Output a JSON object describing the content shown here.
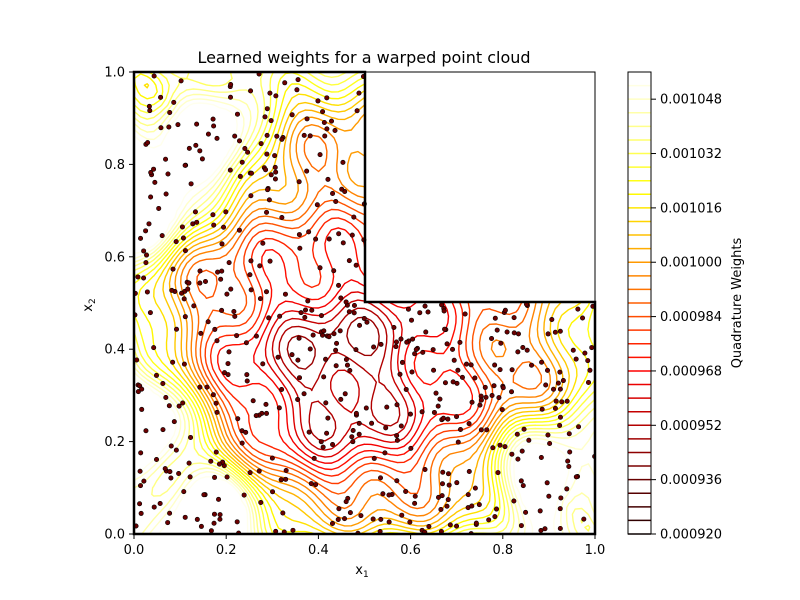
{
  "chart_data": {
    "type": "contour",
    "title": "Learned weights for a warped point cloud",
    "xlabel": "x",
    "xlabel_sub": "1",
    "ylabel": "x",
    "ylabel_sub": "2",
    "xlim": [
      0.0,
      1.0
    ],
    "ylim": [
      0.0,
      1.0
    ],
    "xticks": [
      "0.0",
      "0.2",
      "0.4",
      "0.6",
      "0.8",
      "1.0"
    ],
    "yticks": [
      "0.0",
      "0.2",
      "0.4",
      "0.6",
      "0.8",
      "1.0"
    ],
    "domain": "L-shaped: unit square minus the upper-right quadrant [0.5,1]×[0.5,1]",
    "colormap": "hot",
    "colorbar": {
      "label": "Quadrature Weights",
      "min": 0.00092,
      "max": 0.001056,
      "ticks": [
        "0.000920",
        "0.000936",
        "0.000952",
        "0.000968",
        "0.000984",
        "0.001000",
        "0.001016",
        "0.001032",
        "0.001048"
      ]
    },
    "high_weight_regions": [
      {
        "x": 0.17,
        "y": 0.85,
        "level": "high"
      },
      {
        "x": 0.02,
        "y": 0.72,
        "level": "high"
      },
      {
        "x": 0.02,
        "y": 0.25,
        "level": "high"
      },
      {
        "x": 0.17,
        "y": 0.07,
        "level": "high"
      },
      {
        "x": 0.88,
        "y": 0.13,
        "level": "high"
      }
    ],
    "low_weight_center": {
      "x": 0.45,
      "y": 0.35
    },
    "points_description": "scattered quadrature nodes",
    "num_points": 560,
    "colors": {
      "point_fill": "#6b0000",
      "domain_edge": "#000000"
    }
  }
}
